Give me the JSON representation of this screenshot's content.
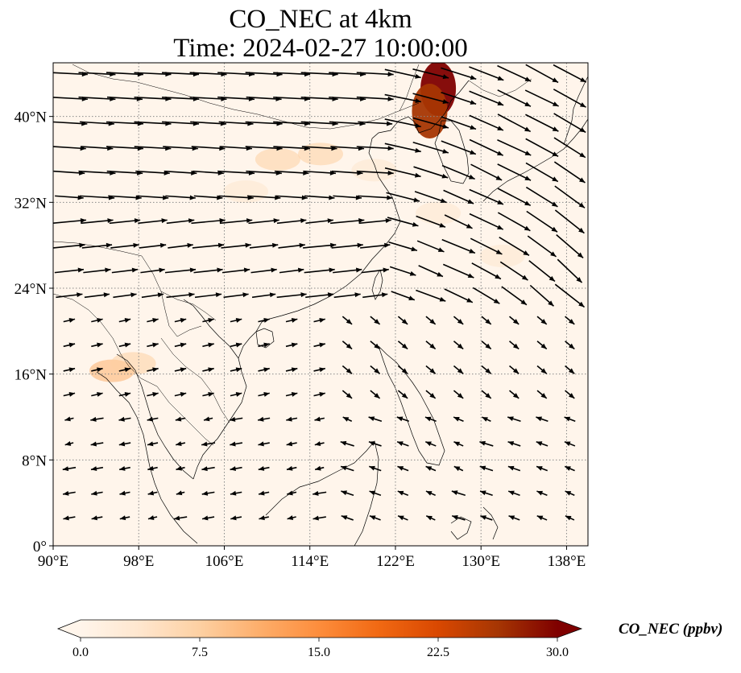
{
  "title": {
    "line1": "CO_NEC at 4km",
    "line2": "Time: 2024-02-27 10:00:00"
  },
  "map": {
    "lon_range": [
      90,
      140
    ],
    "lat_range": [
      0,
      45
    ],
    "lon_ticks": [
      {
        "value": 90,
        "label": "90°E"
      },
      {
        "value": 98,
        "label": "98°E"
      },
      {
        "value": 106,
        "label": "106°E"
      },
      {
        "value": 114,
        "label": "114°E"
      },
      {
        "value": 122,
        "label": "122°E"
      },
      {
        "value": 130,
        "label": "130°E"
      },
      {
        "value": 138,
        "label": "138°E"
      }
    ],
    "lat_ticks": [
      {
        "value": 0,
        "label": "0°"
      },
      {
        "value": 8,
        "label": "8°N"
      },
      {
        "value": 16,
        "label": "16°N"
      },
      {
        "value": 24,
        "label": "24°N"
      },
      {
        "value": 32,
        "label": "32°N"
      },
      {
        "value": 40,
        "label": "40°N"
      }
    ],
    "gridlines": true,
    "field_variable": "CO_NEC",
    "plumes": [
      {
        "lon": 126.0,
        "lat": 42.6,
        "value": 30.0
      },
      {
        "lon": 125.2,
        "lat": 40.5,
        "value": 26.0
      },
      {
        "lon": 111.0,
        "lat": 36.0,
        "value": 9.0
      },
      {
        "lon": 115.0,
        "lat": 36.5,
        "value": 6.0
      },
      {
        "lon": 120.0,
        "lat": 35.0,
        "value": 5.0
      },
      {
        "lon": 95.5,
        "lat": 16.3,
        "value": 10.0
      },
      {
        "lon": 97.5,
        "lat": 17.0,
        "value": 7.0
      },
      {
        "lon": 126.0,
        "lat": 31.0,
        "value": 3.5
      },
      {
        "lon": 132.0,
        "lat": 27.0,
        "value": 3.0
      },
      {
        "lon": 108.0,
        "lat": 33.0,
        "value": 3.0
      }
    ]
  },
  "colorbar": {
    "label": "CO_NEC (ppbv)",
    "min": 0.0,
    "max": 30.0,
    "ticks": [
      "0.0",
      "7.5",
      "15.0",
      "22.5",
      "30.0"
    ],
    "extend": "both",
    "colors": [
      "#fff5eb",
      "#fee6ce",
      "#fdd0a2",
      "#fdae6b",
      "#fd8d3c",
      "#f16913",
      "#d94801",
      "#a63603",
      "#7f0000"
    ]
  },
  "colors": {
    "coastline": "#000000",
    "gridline": "#888888",
    "wind_vectors": "#000000"
  }
}
